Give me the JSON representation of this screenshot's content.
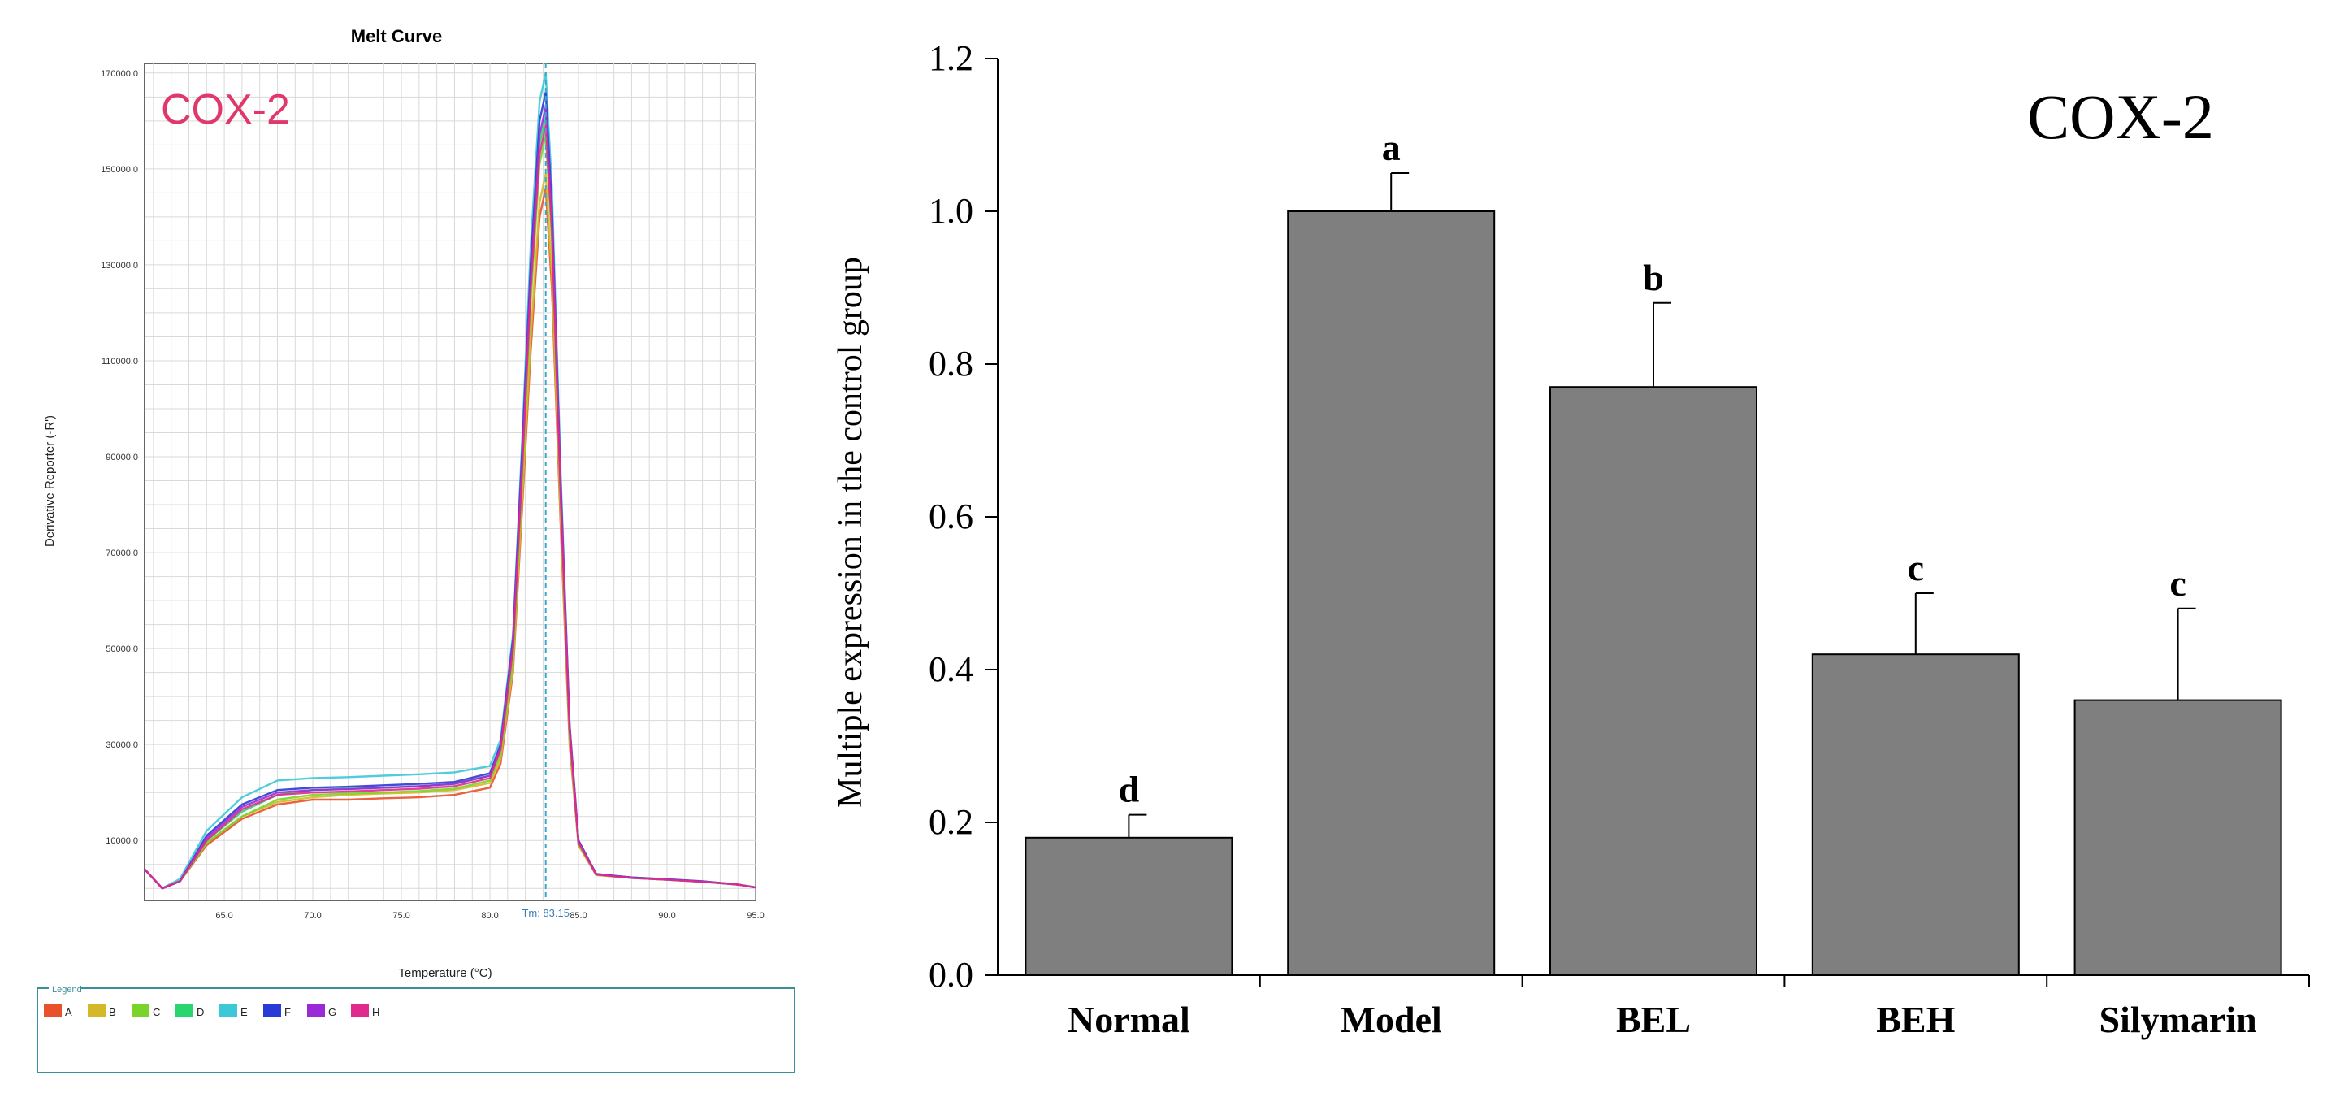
{
  "chart_data": [
    {
      "type": "line",
      "title": "Melt Curve",
      "annotation": "COX-2",
      "xlabel": "Temperature (°C)",
      "ylabel": "Derivative Reporter (-R')",
      "xlim": [
        60.5,
        95.0
      ],
      "ylim": [
        -2500,
        172000
      ],
      "x_ticks": [
        65.0,
        70.0,
        75.0,
        80.0,
        85.0,
        90.0,
        95.0
      ],
      "x_tick_labels": [
        "65.0",
        "70.0",
        "75.0",
        "80.0",
        "85.0",
        "90.0",
        "95.0"
      ],
      "y_ticks": [
        10000,
        30000,
        50000,
        70000,
        90000,
        110000,
        130000,
        150000,
        170000
      ],
      "y_tick_labels": [
        "10000.0",
        "30000.0",
        "50000.0",
        "70000.0",
        "90000.0",
        "110000.0",
        "130000.0",
        "150000.0",
        "170000.0"
      ],
      "tm_label": "Tm: 83.15",
      "tm_value": 83.15,
      "grid": true,
      "legend_title": "Legend",
      "legend": [
        {
          "label": "A",
          "color": "#e8512a"
        },
        {
          "label": "B",
          "color": "#d4b82a"
        },
        {
          "label": "C",
          "color": "#78d42a"
        },
        {
          "label": "D",
          "color": "#2ad46e"
        },
        {
          "label": "E",
          "color": "#3cc8d8"
        },
        {
          "label": "F",
          "color": "#2a3ad4"
        },
        {
          "label": "G",
          "color": "#9a2ad8"
        },
        {
          "label": "H",
          "color": "#e02a8c"
        }
      ],
      "series": [
        {
          "name": "A",
          "color": "#e8512a",
          "values": [
            [
              60.5,
              4000
            ],
            [
              61.5,
              0
            ],
            [
              62.5,
              1500
            ],
            [
              64,
              9000
            ],
            [
              66,
              14500
            ],
            [
              68,
              17500
            ],
            [
              70,
              18500
            ],
            [
              72,
              18500
            ],
            [
              74,
              18800
            ],
            [
              76,
              19000
            ],
            [
              78,
              19500
            ],
            [
              80,
              21000
            ],
            [
              80.6,
              26000
            ],
            [
              81.3,
              45000
            ],
            [
              81.8,
              78000
            ],
            [
              82.3,
              112000
            ],
            [
              82.8,
              140000
            ],
            [
              83.15,
              146000
            ],
            [
              83.5,
              125000
            ],
            [
              84,
              75000
            ],
            [
              84.5,
              30000
            ],
            [
              85,
              9000
            ],
            [
              86,
              2800
            ],
            [
              88,
              2200
            ],
            [
              90,
              1800
            ],
            [
              92,
              1400
            ],
            [
              94,
              800
            ],
            [
              95,
              200
            ]
          ]
        },
        {
          "name": "B",
          "color": "#d4b82a",
          "values": [
            [
              60.5,
              4000
            ],
            [
              61.5,
              0
            ],
            [
              62.5,
              1500
            ],
            [
              64,
              9500
            ],
            [
              66,
              15000
            ],
            [
              68,
              18000
            ],
            [
              70,
              19000
            ],
            [
              72,
              19500
            ],
            [
              74,
              19800
            ],
            [
              76,
              20000
            ],
            [
              78,
              20500
            ],
            [
              80,
              22000
            ],
            [
              80.6,
              27000
            ],
            [
              81.3,
              46000
            ],
            [
              81.8,
              80000
            ],
            [
              82.3,
              115000
            ],
            [
              82.8,
              143000
            ],
            [
              83.15,
              149000
            ],
            [
              83.5,
              128000
            ],
            [
              84,
              77000
            ],
            [
              84.5,
              31000
            ],
            [
              85,
              9000
            ],
            [
              86,
              2800
            ],
            [
              88,
              2200
            ],
            [
              90,
              1800
            ],
            [
              92,
              1400
            ],
            [
              94,
              800
            ],
            [
              95,
              200
            ]
          ]
        },
        {
          "name": "C",
          "color": "#78d42a",
          "values": [
            [
              60.5,
              4000
            ],
            [
              61.5,
              0
            ],
            [
              62.5,
              1500
            ],
            [
              64,
              9500
            ],
            [
              66,
              15000
            ],
            [
              68,
              18500
            ],
            [
              70,
              19500
            ],
            [
              72,
              19800
            ],
            [
              74,
              20000
            ],
            [
              76,
              20300
            ],
            [
              78,
              20800
            ],
            [
              80,
              22500
            ],
            [
              80.6,
              28000
            ],
            [
              81.3,
              48000
            ],
            [
              81.8,
              84000
            ],
            [
              82.3,
              122000
            ],
            [
              82.8,
              151000
            ],
            [
              83.15,
              157000
            ],
            [
              83.5,
              135000
            ],
            [
              84,
              80000
            ],
            [
              84.5,
              32000
            ],
            [
              85,
              9500
            ],
            [
              86,
              2900
            ],
            [
              88,
              2200
            ],
            [
              90,
              1800
            ],
            [
              92,
              1400
            ],
            [
              94,
              800
            ],
            [
              95,
              200
            ]
          ]
        },
        {
          "name": "D",
          "color": "#2ad46e",
          "values": [
            [
              60.5,
              4000
            ],
            [
              61.5,
              0
            ],
            [
              62.5,
              1500
            ],
            [
              64,
              10000
            ],
            [
              66,
              16000
            ],
            [
              68,
              19500
            ],
            [
              70,
              20500
            ],
            [
              72,
              20800
            ],
            [
              74,
              21000
            ],
            [
              76,
              21300
            ],
            [
              78,
              21800
            ],
            [
              80,
              23500
            ],
            [
              80.6,
              29000
            ],
            [
              81.3,
              50000
            ],
            [
              81.8,
              87000
            ],
            [
              82.3,
              126000
            ],
            [
              82.8,
              155000
            ],
            [
              83.15,
              161000
            ],
            [
              83.5,
              138000
            ],
            [
              84,
              82000
            ],
            [
              84.5,
              33000
            ],
            [
              85,
              9500
            ],
            [
              86,
              2900
            ],
            [
              88,
              2200
            ],
            [
              90,
              1800
            ],
            [
              92,
              1400
            ],
            [
              94,
              800
            ],
            [
              95,
              200
            ]
          ]
        },
        {
          "name": "E",
          "color": "#3cc8d8",
          "values": [
            [
              60.5,
              4000
            ],
            [
              61.5,
              0
            ],
            [
              62.5,
              2000
            ],
            [
              64,
              12000
            ],
            [
              66,
              19000
            ],
            [
              68,
              22500
            ],
            [
              70,
              23000
            ],
            [
              72,
              23200
            ],
            [
              74,
              23500
            ],
            [
              76,
              23800
            ],
            [
              78,
              24200
            ],
            [
              80,
              25500
            ],
            [
              80.6,
              31000
            ],
            [
              81.3,
              53000
            ],
            [
              81.8,
              92000
            ],
            [
              82.3,
              134000
            ],
            [
              82.8,
              164000
            ],
            [
              83.15,
              170000
            ],
            [
              83.5,
              146000
            ],
            [
              84,
              86000
            ],
            [
              84.5,
              34000
            ],
            [
              85,
              10000
            ],
            [
              86,
              3000
            ],
            [
              88,
              2300
            ],
            [
              90,
              1900
            ],
            [
              92,
              1500
            ],
            [
              94,
              800
            ],
            [
              95,
              200
            ]
          ]
        },
        {
          "name": "F",
          "color": "#2a3ad4",
          "values": [
            [
              60.5,
              4000
            ],
            [
              61.5,
              0
            ],
            [
              62.5,
              1500
            ],
            [
              64,
              11000
            ],
            [
              66,
              17500
            ],
            [
              68,
              20500
            ],
            [
              70,
              21000
            ],
            [
              72,
              21200
            ],
            [
              74,
              21500
            ],
            [
              76,
              21800
            ],
            [
              78,
              22200
            ],
            [
              80,
              24000
            ],
            [
              80.6,
              30000
            ],
            [
              81.3,
              52000
            ],
            [
              81.8,
              90000
            ],
            [
              82.3,
              130000
            ],
            [
              82.8,
              160000
            ],
            [
              83.15,
              166000
            ],
            [
              83.5,
              142000
            ],
            [
              84,
              84000
            ],
            [
              84.5,
              34000
            ],
            [
              85,
              10000
            ],
            [
              86,
              3000
            ],
            [
              88,
              2300
            ],
            [
              90,
              1900
            ],
            [
              92,
              1500
            ],
            [
              94,
              800
            ],
            [
              95,
              200
            ]
          ]
        },
        {
          "name": "G",
          "color": "#9a2ad8",
          "values": [
            [
              60.5,
              4000
            ],
            [
              61.5,
              0
            ],
            [
              62.5,
              1500
            ],
            [
              64,
              10500
            ],
            [
              66,
              17000
            ],
            [
              68,
              20000
            ],
            [
              70,
              20500
            ],
            [
              72,
              20700
            ],
            [
              74,
              21000
            ],
            [
              76,
              21300
            ],
            [
              78,
              21800
            ],
            [
              80,
              23500
            ],
            [
              80.6,
              29500
            ],
            [
              81.3,
              51000
            ],
            [
              81.8,
              88000
            ],
            [
              82.3,
              128000
            ],
            [
              82.8,
              157000
            ],
            [
              83.15,
              163000
            ],
            [
              83.5,
              140000
            ],
            [
              84,
              83000
            ],
            [
              84.5,
              33500
            ],
            [
              85,
              9800
            ],
            [
              86,
              2950
            ],
            [
              88,
              2250
            ],
            [
              90,
              1850
            ],
            [
              92,
              1450
            ],
            [
              94,
              800
            ],
            [
              95,
              200
            ]
          ]
        },
        {
          "name": "H",
          "color": "#e02a8c",
          "values": [
            [
              60.5,
              4000
            ],
            [
              61.5,
              0
            ],
            [
              62.5,
              1500
            ],
            [
              64,
              10000
            ],
            [
              66,
              16500
            ],
            [
              68,
              19500
            ],
            [
              70,
              20000
            ],
            [
              72,
              20200
            ],
            [
              74,
              20500
            ],
            [
              76,
              20800
            ],
            [
              78,
              21300
            ],
            [
              80,
              23000
            ],
            [
              80.6,
              29000
            ],
            [
              81.3,
              50000
            ],
            [
              81.8,
              86000
            ],
            [
              82.3,
              125000
            ],
            [
              82.8,
              153000
            ],
            [
              83.15,
              159000
            ],
            [
              83.5,
              137000
            ],
            [
              84,
              81000
            ],
            [
              84.5,
              33000
            ],
            [
              85,
              9600
            ],
            [
              86,
              2900
            ],
            [
              88,
              2200
            ],
            [
              90,
              1800
            ],
            [
              92,
              1400
            ],
            [
              94,
              800
            ],
            [
              95,
              200
            ]
          ]
        }
      ]
    },
    {
      "type": "bar",
      "title": "COX-2",
      "xlabel": "",
      "ylabel": "Multiple expression  in the control  group",
      "categories": [
        "Normal",
        "Model",
        "BEL",
        "BEH",
        "Silymarin"
      ],
      "values": [
        0.18,
        1.0,
        0.77,
        0.42,
        0.36
      ],
      "errors": [
        0.03,
        0.05,
        0.11,
        0.08,
        0.12
      ],
      "significance_letters": [
        "d",
        "a",
        "b",
        "c",
        "c"
      ],
      "ylim": [
        0.0,
        1.2
      ],
      "y_ticks": [
        0.0,
        0.2,
        0.4,
        0.6,
        0.8,
        1.0,
        1.2
      ],
      "y_tick_labels": [
        "0.0",
        "0.2",
        "0.4",
        "0.6",
        "0.8",
        "1.0",
        "1.2"
      ],
      "bar_color": "#7f7f7f"
    }
  ]
}
